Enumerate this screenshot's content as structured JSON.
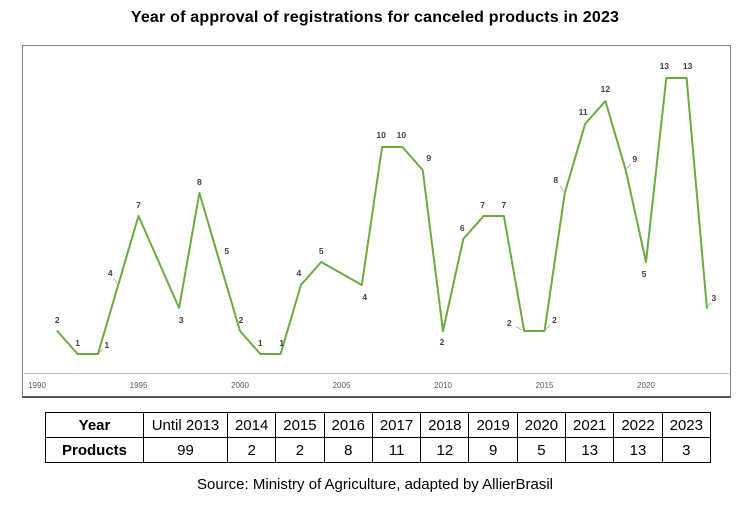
{
  "page": {
    "title": "Year of approval of registrations for canceled products in 2023",
    "source": "Source: Ministry of Agriculture, adapted by AllierBrasil"
  },
  "chart_data": {
    "type": "line",
    "title": "Year of approval of registrations for canceled products in 2023",
    "xlabel": "",
    "ylabel": "",
    "x_axis_ticks": [
      1990,
      1995,
      2000,
      2005,
      2010,
      2015,
      2020
    ],
    "x_range": [
      1990,
      2024
    ],
    "y_implied_range": [
      0,
      14
    ],
    "grid": false,
    "legend": "none",
    "line_color": "#6caa43",
    "label_color": "#404040",
    "tick_color": "#595959",
    "axis_line_color": "#bfbfbf",
    "leader_color": "#a6a6a6",
    "series": [
      {
        "name": "Products",
        "points": [
          {
            "year": 1991,
            "value": 2,
            "dx": 0,
            "dy": -11
          },
          {
            "year": 1992,
            "value": 1,
            "dx": 0,
            "dy": -11
          },
          {
            "year": 1993,
            "value": 1,
            "dx": 9,
            "dy": -9,
            "leader": true
          },
          {
            "year": 1994,
            "value": 4,
            "dx": -8,
            "dy": -12,
            "leader": true
          },
          {
            "year": 1995,
            "value": 7,
            "dx": 0,
            "dy": -11
          },
          {
            "year": 1997,
            "value": 3,
            "dx": 2,
            "dy": 12
          },
          {
            "year": 1998,
            "value": 8,
            "dx": 0,
            "dy": -11
          },
          {
            "year": 1999,
            "value": 5,
            "dx": 7,
            "dy": -11
          },
          {
            "year": 2000,
            "value": 2,
            "dx": 1,
            "dy": -11
          },
          {
            "year": 2001,
            "value": 1,
            "dx": 0,
            "dy": -11
          },
          {
            "year": 2002,
            "value": 1,
            "dx": 1,
            "dy": -11
          },
          {
            "year": 2003,
            "value": 4,
            "dx": -2,
            "dy": -12
          },
          {
            "year": 2004,
            "value": 5,
            "dx": 0,
            "dy": -11
          },
          {
            "year": 2006,
            "value": 4,
            "dx": 3,
            "dy": 12
          },
          {
            "year": 2007,
            "value": 10,
            "dx": -1,
            "dy": -12
          },
          {
            "year": 2008,
            "value": 10,
            "dx": -1,
            "dy": -12
          },
          {
            "year": 2009,
            "value": 9,
            "dx": 6,
            "dy": -12
          },
          {
            "year": 2010,
            "value": 2,
            "dx": -1,
            "dy": 11
          },
          {
            "year": 2011,
            "value": 6,
            "dx": -1,
            "dy": -11
          },
          {
            "year": 2012,
            "value": 7,
            "dx": -1,
            "dy": -11
          },
          {
            "year": 2013,
            "value": 7,
            "dx": 0,
            "dy": -11
          },
          {
            "year": 2014,
            "value": 2,
            "dx": -15,
            "dy": -8,
            "leader": true
          },
          {
            "year": 2015,
            "value": 2,
            "dx": 10,
            "dy": -11,
            "leader": true
          },
          {
            "year": 2016,
            "value": 8,
            "dx": -9,
            "dy": -13,
            "leader": true
          },
          {
            "year": 2017,
            "value": 11,
            "dx": -2,
            "dy": -12
          },
          {
            "year": 2018,
            "value": 12,
            "dx": 0,
            "dy": -12
          },
          {
            "year": 2019,
            "value": 9,
            "dx": 9,
            "dy": -11,
            "leader": true
          },
          {
            "year": 2020,
            "value": 5,
            "dx": -2,
            "dy": 12
          },
          {
            "year": 2021,
            "value": 13,
            "dx": -2,
            "dy": -12
          },
          {
            "year": 2022,
            "value": 13,
            "dx": 1,
            "dy": -12
          },
          {
            "year": 2023,
            "value": 3,
            "dx": 7,
            "dy": -10,
            "leader": true
          }
        ]
      }
    ]
  },
  "table": {
    "header_label": "Year",
    "row_label": "Products",
    "columns": [
      "Until 2013",
      "2014",
      "2015",
      "2016",
      "2017",
      "2018",
      "2019",
      "2020",
      "2021",
      "2022",
      "2023"
    ],
    "values": [
      "99",
      "2",
      "2",
      "8",
      "11",
      "12",
      "9",
      "5",
      "13",
      "13",
      "3"
    ]
  }
}
